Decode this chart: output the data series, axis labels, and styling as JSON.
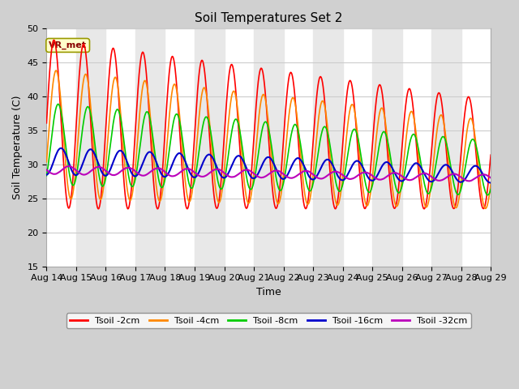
{
  "title": "Soil Temperatures Set 2",
  "xlabel": "Time",
  "ylabel": "Soil Temperature (C)",
  "ylim": [
    15,
    50
  ],
  "yticks": [
    15,
    20,
    25,
    30,
    35,
    40,
    45,
    50
  ],
  "legend_label": "VR_met",
  "series": [
    {
      "label": "Tsoil -2cm",
      "color": "#ff0000"
    },
    {
      "label": "Tsoil -4cm",
      "color": "#ff8800"
    },
    {
      "label": "Tsoil -8cm",
      "color": "#00cc00"
    },
    {
      "label": "Tsoil -16cm",
      "color": "#0000cc"
    },
    {
      "label": "Tsoil -32cm",
      "color": "#bb00bb"
    }
  ],
  "n_days": 15,
  "pts_per_day": 144,
  "start_day": 14,
  "figsize": [
    6.4,
    4.8
  ],
  "dpi": 100,
  "title_fontsize": 11,
  "axis_label_fontsize": 9,
  "tick_fontsize": 8,
  "legend_box_color": "#ffffcc",
  "legend_box_edge": "#999900",
  "legend_text_color": "#880000",
  "params": [
    [
      12.5,
      8.0,
      36.0,
      31.5,
      0.0
    ],
    [
      9.5,
      6.5,
      34.5,
      30.0,
      0.45
    ],
    [
      6.0,
      4.0,
      33.0,
      29.5,
      0.9
    ],
    [
      2.0,
      1.2,
      30.5,
      28.5,
      1.5
    ],
    [
      0.6,
      0.5,
      29.2,
      28.0,
      3.2
    ]
  ],
  "band_color": "#e8e8e8",
  "plot_bg": "#ffffff",
  "fig_bg": "#d0d0d0"
}
